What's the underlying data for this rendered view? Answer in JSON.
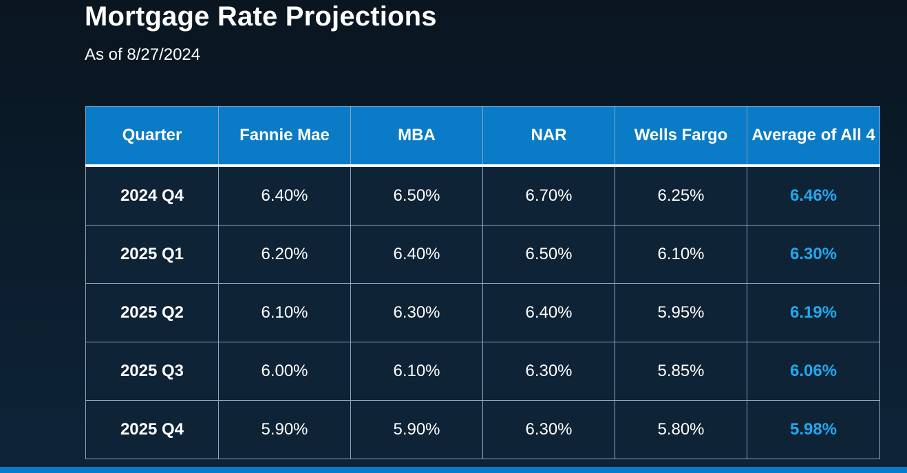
{
  "header": {
    "title": "Mortgage Rate Projections",
    "subtitle": "As of 8/27/2024"
  },
  "colors": {
    "header_background": "#0a7bc6",
    "average_text": "#22a8ee",
    "body_cell_background": "#0f2336"
  },
  "chart_data": {
    "type": "table",
    "title": "Mortgage Rate Projections",
    "subtitle": "As of 8/27/2024",
    "columns": [
      "Quarter",
      "Fannie Mae",
      "MBA",
      "NAR",
      "Wells Fargo",
      "Average of All 4"
    ],
    "rows": [
      [
        "2024 Q4",
        "6.40%",
        "6.50%",
        "6.70%",
        "6.25%",
        "6.46%"
      ],
      [
        "2025 Q1",
        "6.20%",
        "6.40%",
        "6.50%",
        "6.10%",
        "6.30%"
      ],
      [
        "2025 Q2",
        "6.10%",
        "6.30%",
        "6.40%",
        "5.95%",
        "6.19%"
      ],
      [
        "2025 Q3",
        "6.00%",
        "6.10%",
        "6.30%",
        "5.85%",
        "6.06%"
      ],
      [
        "2025 Q4",
        "5.90%",
        "5.90%",
        "6.30%",
        "5.80%",
        "5.98%"
      ]
    ]
  }
}
